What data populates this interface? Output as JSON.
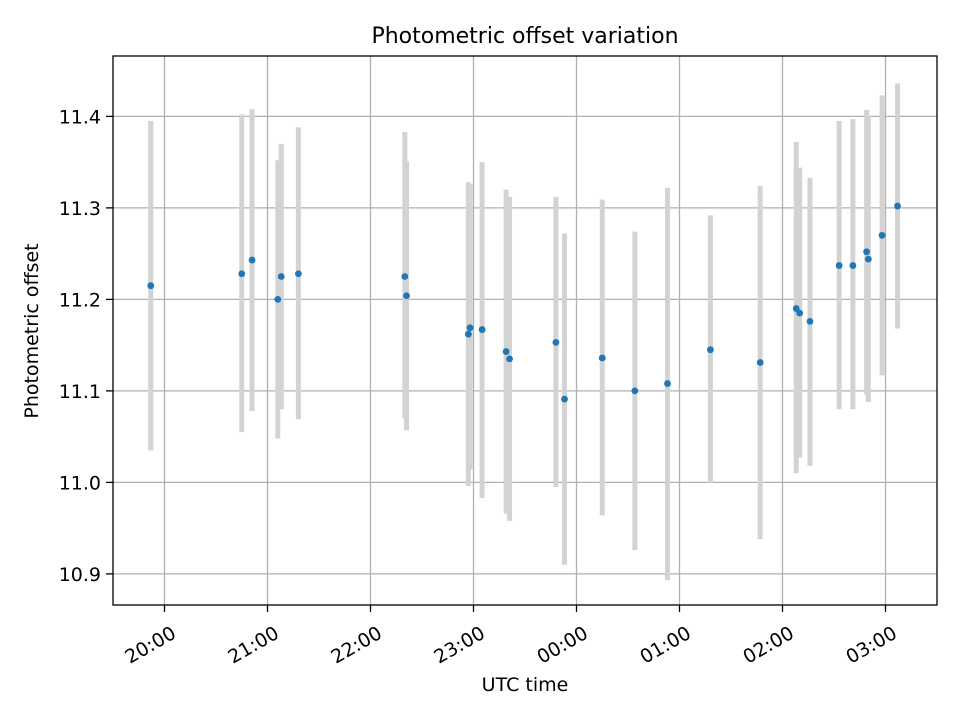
{
  "chart_data": {
    "type": "scatter",
    "title": "Photometric offset variation",
    "xlabel": "UTC time",
    "ylabel": "Photometric offset",
    "grid": true,
    "x_unit": "UTC time (HH:MM)",
    "xlim": [
      "19:30",
      "03:30"
    ],
    "ylim": [
      10.866,
      11.466
    ],
    "x_ticks": [
      "20:00",
      "21:00",
      "22:00",
      "23:00",
      "00:00",
      "01:00",
      "02:00",
      "03:00"
    ],
    "y_ticks": [
      "10.9",
      "11.0",
      "11.1",
      "11.2",
      "11.3",
      "11.4"
    ],
    "marker_color": "#1f77b4",
    "errorbar_color": "#d3d3d3",
    "points": [
      {
        "x": "19:52",
        "y": 11.215,
        "ylo": 11.035,
        "yhi": 11.395
      },
      {
        "x": "20:45",
        "y": 11.228,
        "ylo": 11.055,
        "yhi": 11.402
      },
      {
        "x": "20:51",
        "y": 11.243,
        "ylo": 11.078,
        "yhi": 11.408
      },
      {
        "x": "21:06",
        "y": 11.2,
        "ylo": 11.048,
        "yhi": 11.352
      },
      {
        "x": "21:08",
        "y": 11.225,
        "ylo": 11.08,
        "yhi": 11.37
      },
      {
        "x": "21:18",
        "y": 11.228,
        "ylo": 11.069,
        "yhi": 11.388
      },
      {
        "x": "22:20",
        "y": 11.225,
        "ylo": 11.07,
        "yhi": 11.383
      },
      {
        "x": "22:21",
        "y": 11.204,
        "ylo": 11.057,
        "yhi": 11.351
      },
      {
        "x": "22:57",
        "y": 11.162,
        "ylo": 10.996,
        "yhi": 11.328
      },
      {
        "x": "22:58",
        "y": 11.169,
        "ylo": 11.014,
        "yhi": 11.326
      },
      {
        "x": "23:05",
        "y": 11.167,
        "ylo": 10.983,
        "yhi": 11.35
      },
      {
        "x": "23:19",
        "y": 11.143,
        "ylo": 10.966,
        "yhi": 11.32
      },
      {
        "x": "23:21",
        "y": 11.135,
        "ylo": 10.958,
        "yhi": 11.312
      },
      {
        "x": "23:48",
        "y": 11.153,
        "ylo": 10.995,
        "yhi": 11.312
      },
      {
        "x": "23:53",
        "y": 11.091,
        "ylo": 10.91,
        "yhi": 11.272
      },
      {
        "x": "00:15",
        "y": 11.136,
        "ylo": 10.964,
        "yhi": 11.309
      },
      {
        "x": "00:34",
        "y": 11.1,
        "ylo": 10.926,
        "yhi": 11.274
      },
      {
        "x": "00:53",
        "y": 11.108,
        "ylo": 10.893,
        "yhi": 11.322
      },
      {
        "x": "01:18",
        "y": 11.145,
        "ylo": 10.999,
        "yhi": 11.292
      },
      {
        "x": "01:47",
        "y": 11.131,
        "ylo": 10.938,
        "yhi": 11.324
      },
      {
        "x": "02:08",
        "y": 11.19,
        "ylo": 11.01,
        "yhi": 11.372
      },
      {
        "x": "02:10",
        "y": 11.185,
        "ylo": 11.027,
        "yhi": 11.344
      },
      {
        "x": "02:16",
        "y": 11.176,
        "ylo": 11.018,
        "yhi": 11.333
      },
      {
        "x": "02:33",
        "y": 11.237,
        "ylo": 11.08,
        "yhi": 11.395
      },
      {
        "x": "02:41",
        "y": 11.237,
        "ylo": 11.08,
        "yhi": 11.397
      },
      {
        "x": "02:49",
        "y": 11.252,
        "ylo": 11.096,
        "yhi": 11.407
      },
      {
        "x": "02:50",
        "y": 11.244,
        "ylo": 11.088,
        "yhi": 11.401
      },
      {
        "x": "02:58",
        "y": 11.27,
        "ylo": 11.117,
        "yhi": 11.423
      },
      {
        "x": "03:07",
        "y": 11.302,
        "ylo": 11.168,
        "yhi": 11.436
      }
    ]
  }
}
